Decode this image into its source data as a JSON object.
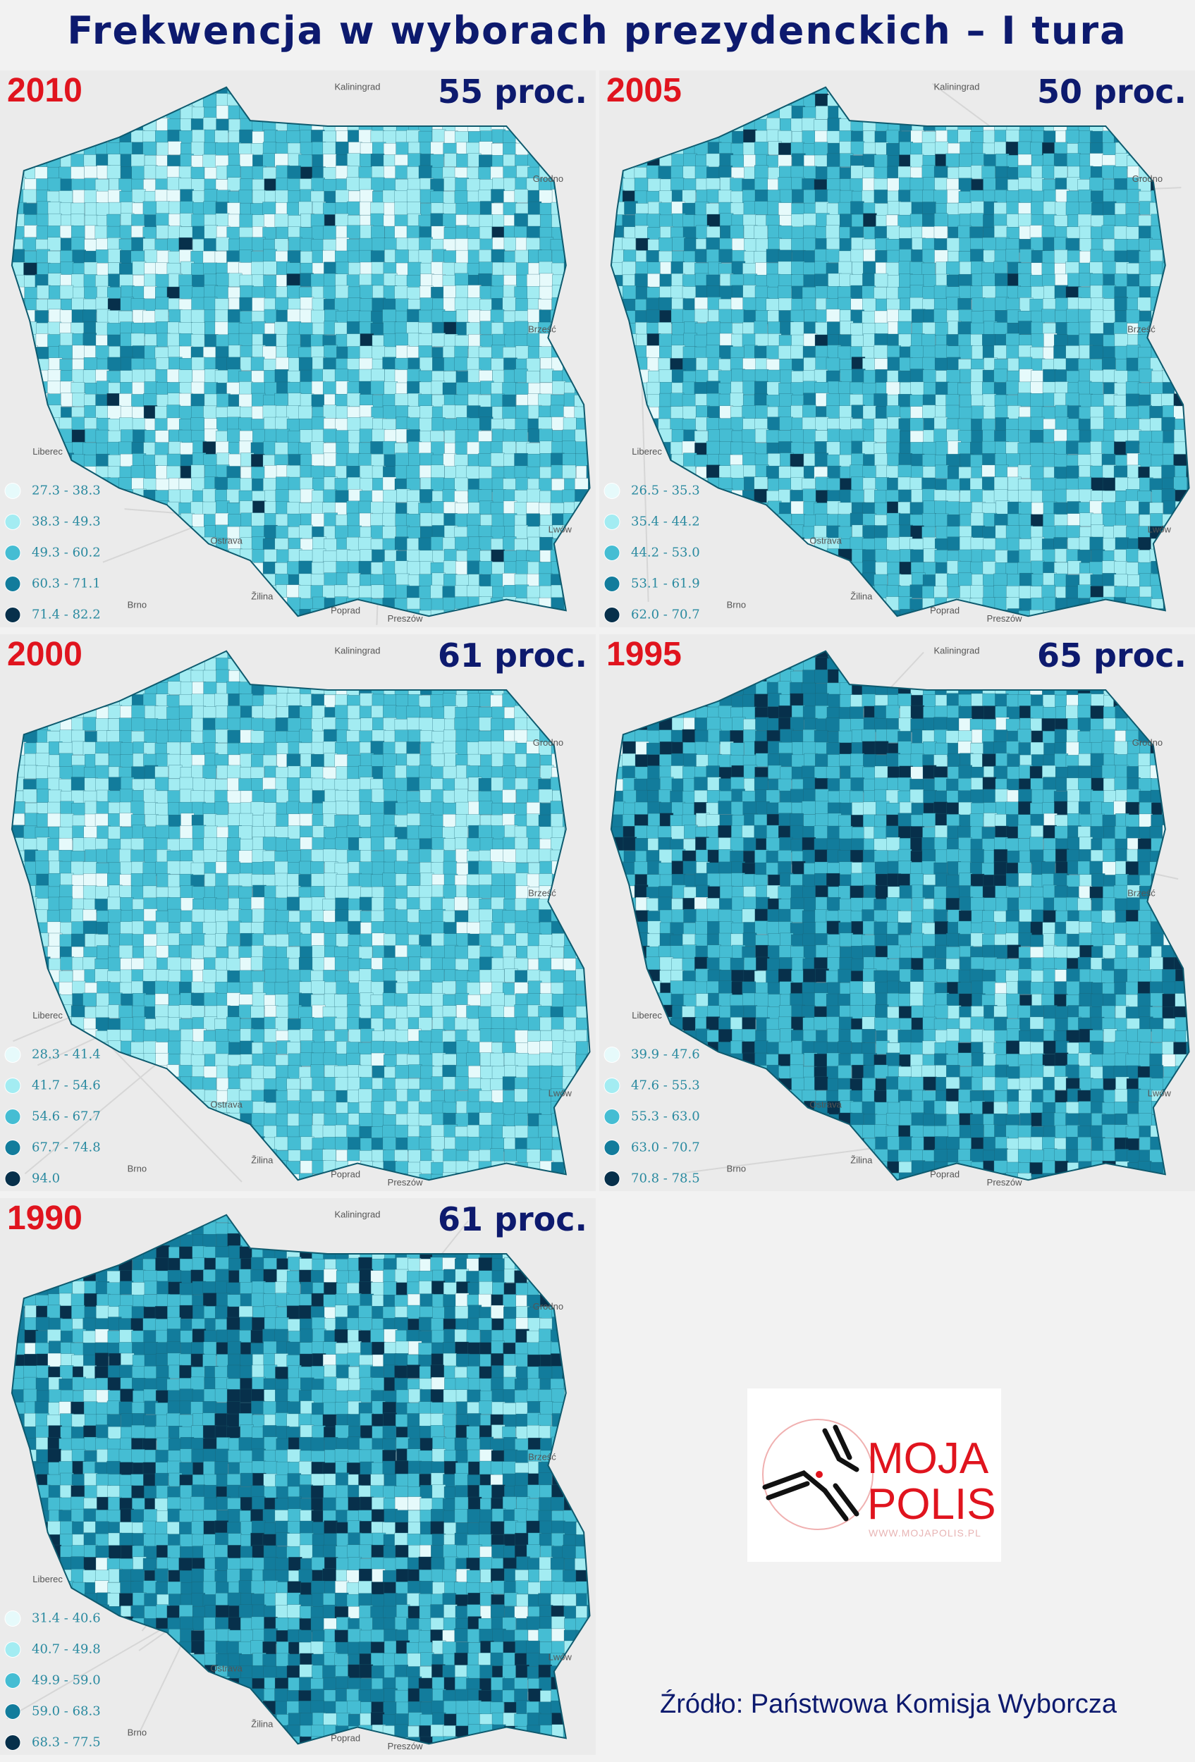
{
  "title": "Frekwencja w wyborach prezydenckich – I tura",
  "panels": [
    {
      "year": "2010",
      "turnout": "55 proc.",
      "legend": [
        "27.3 - 38.3",
        "38.3 - 49.3",
        "49.3 - 60.2",
        "60.3 - 71.1",
        "71.4 - 82.2"
      ]
    },
    {
      "year": "2005",
      "turnout": "50 proc.",
      "legend": [
        "26.5 - 35.3",
        "35.4 - 44.2",
        "44.2 - 53.0",
        "53.1 - 61.9",
        "62.0 - 70.7"
      ]
    },
    {
      "year": "2000",
      "turnout": "61 proc.",
      "legend": [
        "28.3 - 41.4",
        "41.7 - 54.6",
        "54.6 - 67.7",
        "67.7 - 74.8",
        "94.0"
      ]
    },
    {
      "year": "1995",
      "turnout": "65 proc.",
      "legend": [
        "39.9 - 47.6",
        "47.6 - 55.3",
        "55.3 - 63.0",
        "63.0 - 70.7",
        "70.8 - 78.5"
      ]
    },
    {
      "year": "1990",
      "turnout": "61 proc.",
      "legend": [
        "31.4 - 40.6",
        "40.7 - 49.8",
        "49.9 - 59.0",
        "59.0 - 68.3",
        "68.3 - 77.5"
      ]
    }
  ],
  "basemap_labels": [
    "Kaliningrad",
    "Grodno",
    "Brześć",
    "Lwów",
    "Ostrava",
    "Brno",
    "Žilina",
    "Liberec",
    "Poprad",
    "Preszów"
  ],
  "logo": {
    "line1": "MOJA",
    "line2": "POLIS",
    "url": "WWW.MOJAPOLIS.PL"
  },
  "source": "Źródło: Państwowa Komisja Wyborcza"
}
